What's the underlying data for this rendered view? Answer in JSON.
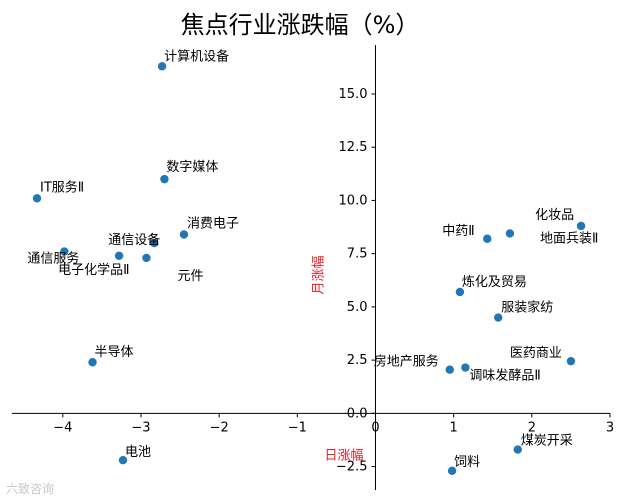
{
  "chart_data": {
    "type": "scatter",
    "title": "焦点行业涨跌幅（%）",
    "xlabel": "日涨幅",
    "ylabel": "月涨幅",
    "xlim": [
      -4.65,
      3.0
    ],
    "ylim": [
      -3.6,
      17.3
    ],
    "x_ticks": [
      -4,
      -3,
      -2,
      -1,
      0,
      1,
      2,
      3
    ],
    "y_ticks": [
      -2.5,
      0.0,
      2.5,
      5.0,
      7.5,
      10.0,
      12.5,
      15.0
    ],
    "point_color": "#1f77b4",
    "axis_label_color": "#e8202a",
    "points": [
      {
        "label": "计算机设备",
        "x": -2.73,
        "y": 16.3
      },
      {
        "label": "数字媒体",
        "x": -2.7,
        "y": 11.0
      },
      {
        "label": "IT服务Ⅱ",
        "x": -4.33,
        "y": 10.1
      },
      {
        "label": "消费电子",
        "x": -2.45,
        "y": 8.4
      },
      {
        "label": "通信设备",
        "x": -2.83,
        "y": 8.0
      },
      {
        "label": "通信服务",
        "x": -3.98,
        "y": 7.6
      },
      {
        "label": "元件",
        "x": -2.93,
        "y": 7.3
      },
      {
        "label": "电子化学品Ⅱ",
        "x": -3.28,
        "y": 7.4
      },
      {
        "label": "半导体",
        "x": -3.62,
        "y": 2.4
      },
      {
        "label": "电池",
        "x": -3.23,
        "y": -2.2
      },
      {
        "label": "化妆品",
        "x": 2.63,
        "y": 8.8
      },
      {
        "label": "中药Ⅱ",
        "x": 1.43,
        "y": 8.2
      },
      {
        "label": "地面兵装Ⅱ",
        "x": 1.72,
        "y": 8.45
      },
      {
        "label": "炼化及贸易",
        "x": 1.08,
        "y": 5.7
      },
      {
        "label": "服装家纺",
        "x": 1.57,
        "y": 4.5
      },
      {
        "label": "医药商业",
        "x": 2.5,
        "y": 2.45
      },
      {
        "label": "房地产服务",
        "x": 0.95,
        "y": 2.05
      },
      {
        "label": "调味发酵品Ⅱ",
        "x": 1.15,
        "y": 2.15
      },
      {
        "label": "煤炭开采",
        "x": 1.82,
        "y": -1.7
      },
      {
        "label": "饲料",
        "x": 0.98,
        "y": -2.7
      }
    ]
  },
  "watermark": "六致咨询"
}
